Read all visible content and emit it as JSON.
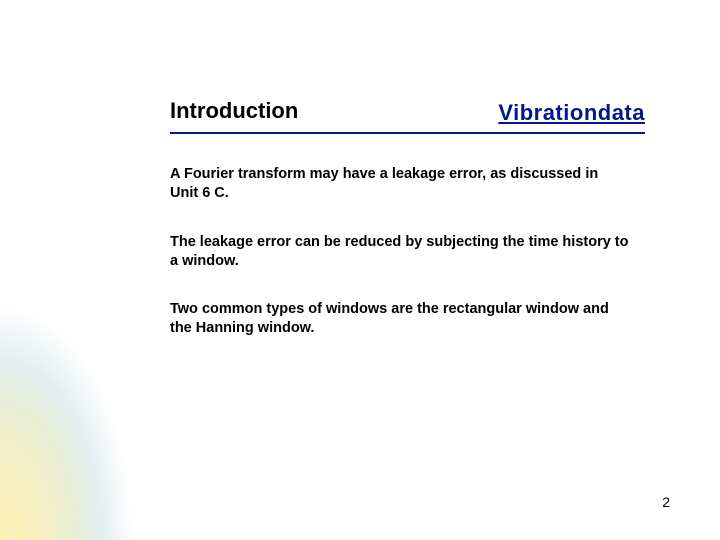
{
  "header": {
    "title": "Introduction",
    "brand": "Vibrationdata",
    "rule_color": "#001a8a",
    "brand_color": "#001a8a",
    "title_color": "#000000",
    "title_fontsize": 22,
    "brand_fontsize": 22
  },
  "paragraphs": [
    "A Fourier transform may have a leakage error, as discussed in Unit 6 C.",
    "The leakage error can be reduced by subjecting the time history to a window.",
    "Two common types of windows are the rectangular window and the Hanning window."
  ],
  "body_fontsize": 14.5,
  "page_number": "2",
  "background_color": "#ffffff",
  "corner_gradient": {
    "inner": "#fdf1b3",
    "outer": "#e3eef0"
  }
}
